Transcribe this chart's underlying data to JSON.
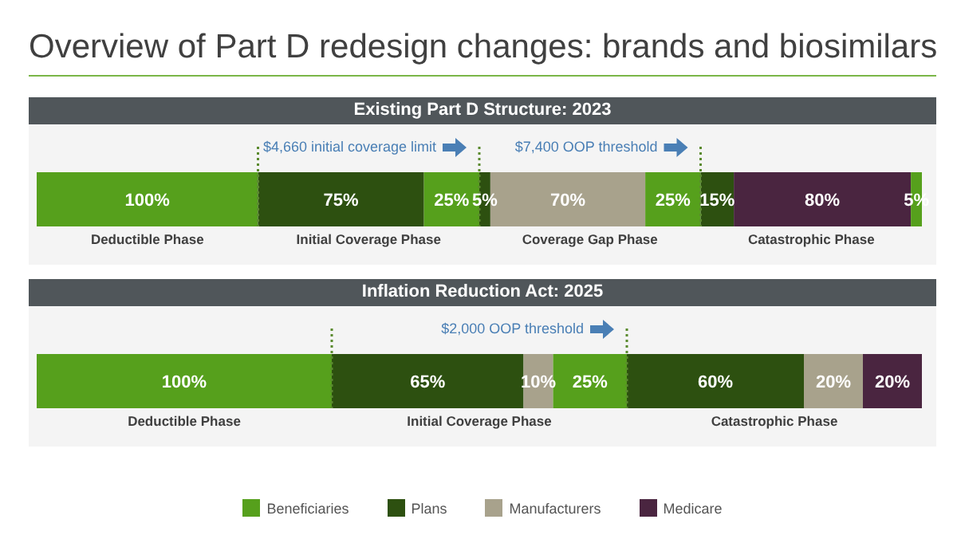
{
  "chart_data": [
    {
      "type": "bar",
      "orientation": "horizontal",
      "stacked": true,
      "title": "Overview of Part D redesign changes: brands and biosimilars",
      "subtitle": "Existing Part D Structure: 2023",
      "categories": [
        null
      ],
      "series": [
        {
          "color": "#56a01c",
          "values": [
            100
          ],
          "value_labels": [
            "100%"
          ]
        },
        {
          "color": "#2d5010",
          "values": [
            75
          ],
          "value_labels": [
            "75%"
          ]
        },
        {
          "color": "#56a01c",
          "values": [
            25
          ],
          "value_labels": [
            "25%"
          ]
        },
        {
          "color": "#2d5010",
          "values": [
            5
          ],
          "value_labels": [
            "5%"
          ]
        },
        {
          "color": "#a8a28c",
          "values": [
            70
          ],
          "value_labels": [
            "70%"
          ]
        },
        {
          "color": "#56a01c",
          "values": [
            25
          ],
          "value_labels": [
            "25%"
          ]
        },
        {
          "color": "#2d5010",
          "values": [
            15
          ],
          "value_labels": [
            "15%"
          ]
        },
        {
          "color": "#4a2540",
          "values": [
            80
          ],
          "value_labels": [
            "80%"
          ]
        },
        {
          "color": "#56a01c",
          "values": [
            5
          ],
          "value_labels": [
            "5%"
          ]
        }
      ],
      "ref_lines": [
        {
          "axis": "x",
          "value": 100,
          "color": "#5a8a2e",
          "line_style": "dotted"
        },
        {
          "axis": "x",
          "value": 200,
          "label": "$4,660 initial coverage limit",
          "color": "#5a8a2e",
          "line_style": "dotted"
        },
        {
          "axis": "x",
          "value": 300,
          "label": "$7,400 OOP threshold",
          "color": "#5a8a2e",
          "line_style": "dotted"
        }
      ],
      "annotations": [
        "Deductible Phase",
        "Initial Coverage Phase",
        "Coverage Gap Phase",
        "Catastrophic Phase"
      ]
    },
    {
      "type": "bar",
      "orientation": "horizontal",
      "stacked": true,
      "title": "Inflation Reduction Act: 2025",
      "categories": [
        null
      ],
      "legend": "bottom",
      "series": [
        {
          "name": "Beneficiaries",
          "color": "#56a01c",
          "values": [
            100
          ],
          "value_labels": [
            "100%"
          ]
        },
        {
          "name": "Plans",
          "color": "#2d5010",
          "values": [
            65
          ],
          "value_labels": [
            "65%"
          ]
        },
        {
          "name": "Manufacturers",
          "color": "#a8a28c",
          "values": [
            10
          ],
          "value_labels": [
            "10%"
          ]
        },
        {
          "color": "#56a01c",
          "values": [
            25
          ],
          "value_labels": [
            "25%"
          ]
        },
        {
          "color": "#2d5010",
          "values": [
            60
          ],
          "value_labels": [
            "60%"
          ]
        },
        {
          "color": "#a8a28c",
          "values": [
            20
          ],
          "value_labels": [
            "20%"
          ]
        },
        {
          "name": "Medicare",
          "color": "#4a2540",
          "values": [
            20
          ],
          "value_labels": [
            "20%"
          ]
        }
      ],
      "ref_lines": [
        {
          "axis": "x",
          "value": 100,
          "color": "#5a8a2e",
          "line_style": "dotted"
        },
        {
          "axis": "x",
          "value": 200,
          "label": "$2,000 OOP threshold",
          "color": "#5a8a2e",
          "line_style": "dotted"
        }
      ],
      "annotations": [
        "Deductible Phase",
        "Initial Coverage Phase",
        "Catastrophic Phase"
      ]
    }
  ]
}
